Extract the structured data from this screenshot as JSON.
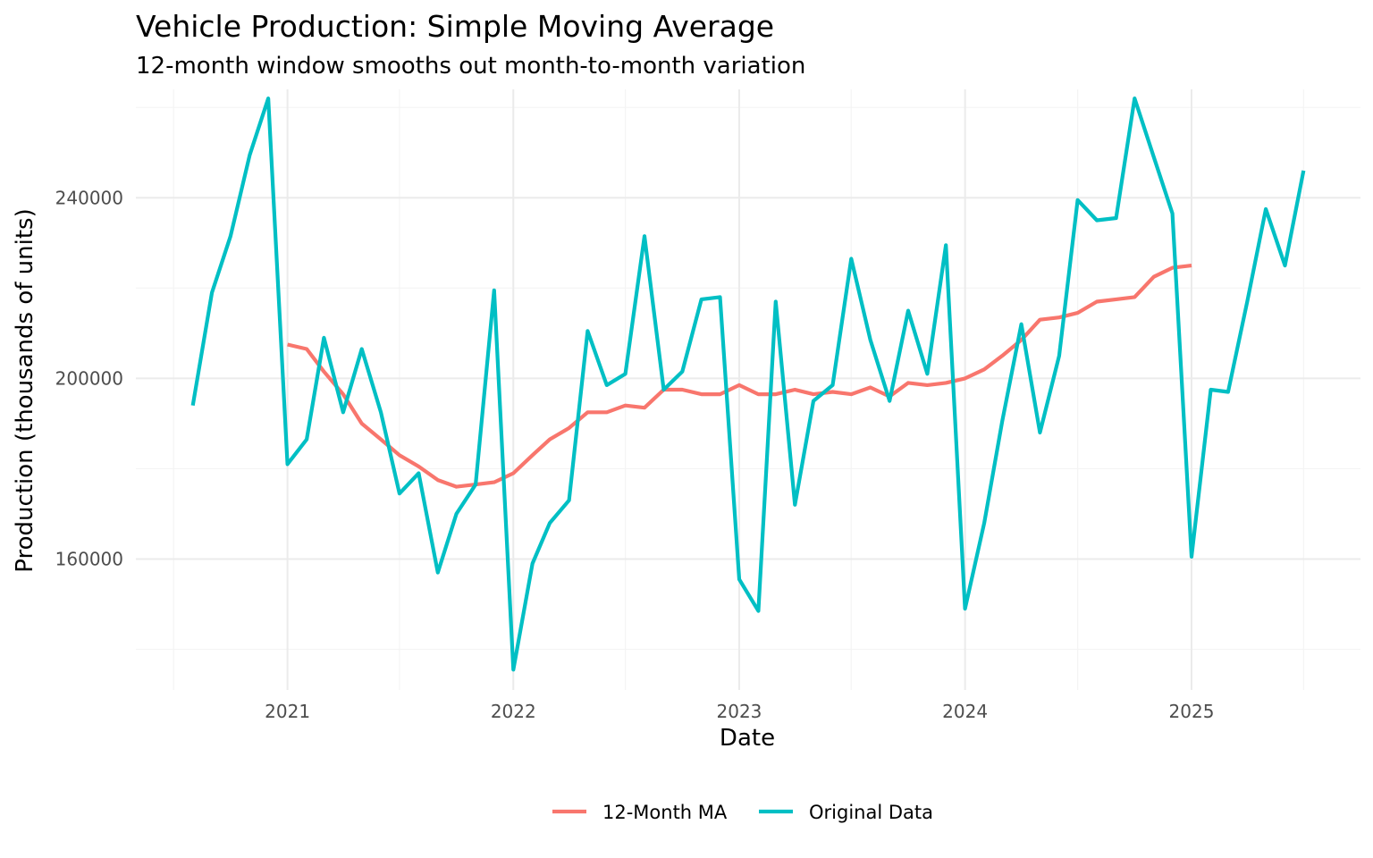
{
  "chart_data": {
    "type": "line",
    "title": "Vehicle Production: Simple Moving Average",
    "subtitle": "12-month window smooths out month-to-month variation",
    "xlabel": "Date",
    "ylabel": "Production (thousands of units)",
    "x_ticks": [
      "2021",
      "2022",
      "2023",
      "2024",
      "2025"
    ],
    "y_ticks": [
      "160000",
      "200000",
      "240000"
    ],
    "xlim": [
      "2020-05-01",
      "2025-10-01"
    ],
    "ylim": [
      131000,
      264000
    ],
    "grid": true,
    "legend_position": "bottom",
    "series": [
      {
        "name": "12-Month MA",
        "color": "#F8766D",
        "points": [
          [
            "2021-01",
            207500
          ],
          [
            "2021-02",
            206500
          ],
          [
            "2021-03",
            201500
          ],
          [
            "2021-04",
            196500
          ],
          [
            "2021-05",
            190000
          ],
          [
            "2021-06",
            186500
          ],
          [
            "2021-07",
            183000
          ],
          [
            "2021-08",
            180500
          ],
          [
            "2021-09",
            177500
          ],
          [
            "2021-10",
            176000
          ],
          [
            "2021-11",
            176500
          ],
          [
            "2021-12",
            177000
          ],
          [
            "2022-01",
            179000
          ],
          [
            "2022-02",
            183000
          ],
          [
            "2022-03",
            186500
          ],
          [
            "2022-04",
            189000
          ],
          [
            "2022-05",
            192500
          ],
          [
            "2022-06",
            192500
          ],
          [
            "2022-07",
            194000
          ],
          [
            "2022-08",
            193500
          ],
          [
            "2022-09",
            197500
          ],
          [
            "2022-10",
            197500
          ],
          [
            "2022-11",
            196500
          ],
          [
            "2022-12",
            196500
          ],
          [
            "2023-01",
            198500
          ],
          [
            "2023-02",
            196500
          ],
          [
            "2023-03",
            196500
          ],
          [
            "2023-04",
            197500
          ],
          [
            "2023-05",
            196500
          ],
          [
            "2023-06",
            197000
          ],
          [
            "2023-07",
            196500
          ],
          [
            "2023-08",
            198000
          ],
          [
            "2023-09",
            196000
          ],
          [
            "2023-10",
            199000
          ],
          [
            "2023-11",
            198500
          ],
          [
            "2023-12",
            199000
          ],
          [
            "2024-01",
            200000
          ],
          [
            "2024-02",
            202000
          ],
          [
            "2024-03",
            205000
          ],
          [
            "2024-04",
            208500
          ],
          [
            "2024-05",
            213000
          ],
          [
            "2024-06",
            213500
          ],
          [
            "2024-07",
            214500
          ],
          [
            "2024-08",
            217000
          ],
          [
            "2024-09",
            217500
          ],
          [
            "2024-10",
            218000
          ],
          [
            "2024-11",
            222500
          ],
          [
            "2024-12",
            224500
          ],
          [
            "2025-01",
            225000
          ]
        ]
      },
      {
        "name": "Original Data",
        "color": "#00BFC4",
        "points": [
          [
            "2020-08",
            194000
          ],
          [
            "2020-09",
            219000
          ],
          [
            "2020-10",
            231500
          ],
          [
            "2020-11",
            249500
          ],
          [
            "2020-12",
            262000
          ],
          [
            "2021-01",
            181000
          ],
          [
            "2021-02",
            186500
          ],
          [
            "2021-03",
            209000
          ],
          [
            "2021-04",
            192500
          ],
          [
            "2021-05",
            206500
          ],
          [
            "2021-06",
            192500
          ],
          [
            "2021-07",
            174500
          ],
          [
            "2021-08",
            179000
          ],
          [
            "2021-09",
            157000
          ],
          [
            "2021-10",
            170000
          ],
          [
            "2021-11",
            176500
          ],
          [
            "2021-12",
            219500
          ],
          [
            "2022-01",
            135500
          ],
          [
            "2022-02",
            159000
          ],
          [
            "2022-03",
            168000
          ],
          [
            "2022-04",
            173000
          ],
          [
            "2022-05",
            210500
          ],
          [
            "2022-06",
            198500
          ],
          [
            "2022-07",
            201000
          ],
          [
            "2022-08",
            231500
          ],
          [
            "2022-09",
            197500
          ],
          [
            "2022-10",
            201500
          ],
          [
            "2022-11",
            217500
          ],
          [
            "2022-12",
            218000
          ],
          [
            "2023-01",
            155500
          ],
          [
            "2023-02",
            148500
          ],
          [
            "2023-03",
            217000
          ],
          [
            "2023-04",
            172000
          ],
          [
            "2023-05",
            195000
          ],
          [
            "2023-06",
            198500
          ],
          [
            "2023-07",
            226500
          ],
          [
            "2023-08",
            208500
          ],
          [
            "2023-09",
            195000
          ],
          [
            "2023-10",
            215000
          ],
          [
            "2023-11",
            201000
          ],
          [
            "2023-12",
            229500
          ],
          [
            "2024-01",
            149000
          ],
          [
            "2024-02",
            168000
          ],
          [
            "2024-03",
            190500
          ],
          [
            "2024-04",
            212000
          ],
          [
            "2024-05",
            188000
          ],
          [
            "2024-06",
            205000
          ],
          [
            "2024-07",
            239500
          ],
          [
            "2024-08",
            235000
          ],
          [
            "2024-09",
            235500
          ],
          [
            "2024-10",
            262000
          ],
          [
            "2024-11",
            249000
          ],
          [
            "2024-12",
            236500
          ],
          [
            "2025-01",
            160500
          ],
          [
            "2025-02",
            197500
          ],
          [
            "2025-03",
            197000
          ],
          [
            "2025-04",
            217000
          ],
          [
            "2025-05",
            237500
          ],
          [
            "2025-06",
            225000
          ],
          [
            "2025-07",
            246000
          ]
        ]
      }
    ]
  }
}
